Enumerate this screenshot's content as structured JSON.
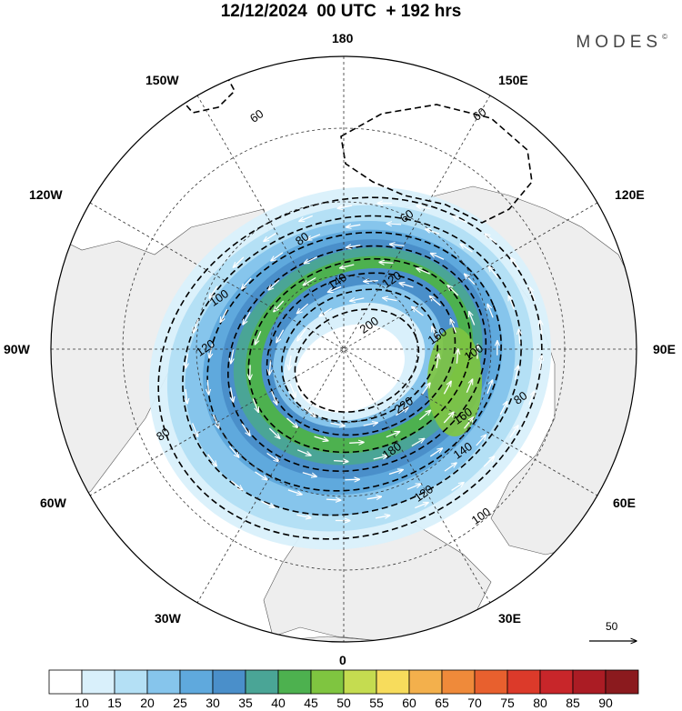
{
  "title": "12/12/2024  00 UTC  + 192 hrs",
  "brand": "MODES",
  "brand_mark": "©",
  "longitude_labels": [
    {
      "text": "180",
      "lon": 180
    },
    {
      "text": "150E",
      "lon": 150
    },
    {
      "text": "120E",
      "lon": 120
    },
    {
      "text": "90E",
      "lon": 90
    },
    {
      "text": "60E",
      "lon": 60
    },
    {
      "text": "30E",
      "lon": 30
    },
    {
      "text": "0",
      "lon": 0
    },
    {
      "text": "30W",
      "lon": -30
    },
    {
      "text": "60W",
      "lon": -60
    },
    {
      "text": "90W",
      "lon": -90
    },
    {
      "text": "120W",
      "lon": -120
    },
    {
      "text": "150W",
      "lon": -150
    }
  ],
  "contour_labels": [
    "60",
    "60",
    "60",
    "80",
    "80",
    "80",
    "100",
    "100",
    "100",
    "120",
    "120",
    "120",
    "140",
    "140",
    "160",
    "160",
    "180",
    "200",
    "220"
  ],
  "reference_vector": {
    "value": "50"
  },
  "colorbar": {
    "levels": [
      "10",
      "15",
      "20",
      "25",
      "30",
      "35",
      "40",
      "45",
      "50",
      "55",
      "60",
      "65",
      "70",
      "75",
      "80",
      "85",
      "90"
    ],
    "colors": [
      "#ffffff",
      "#d9f0fb",
      "#b4e0f5",
      "#86c5ec",
      "#5fa9dd",
      "#4a8fca",
      "#4aa596",
      "#4db14f",
      "#7fc540",
      "#c5dc50",
      "#f7dc5c",
      "#f3b04c",
      "#ef8a3a",
      "#e8602e",
      "#dc3a2a",
      "#c8262a",
      "#ab1c24",
      "#8b1a1e"
    ]
  },
  "colors": {
    "land": "#eeeeee",
    "ocean": "#ffffff",
    "grid": "#333333"
  }
}
